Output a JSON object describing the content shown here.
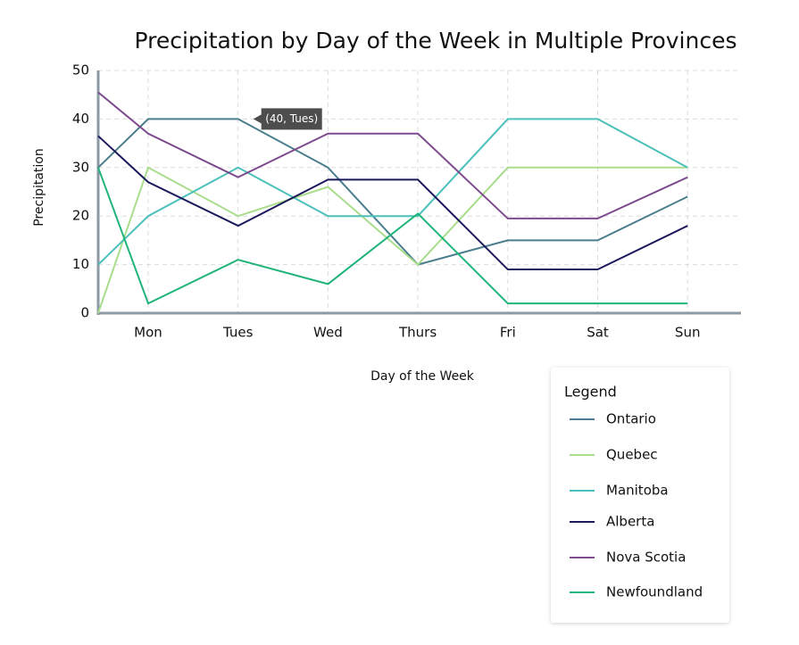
{
  "chart_data": {
    "type": "line",
    "title": "Precipitation by Day of the Week in Multiple Provinces",
    "x_label": "Day of the Week",
    "y_label": "Precipitation",
    "categories": [
      null,
      "Mon",
      "Tues",
      "Wed",
      "Thurs",
      "Fri",
      "Sat",
      "Sun"
    ],
    "series": [
      {
        "name": "Ontario",
        "color": "#4a7e8e",
        "values": [
          30,
          40,
          40,
          30,
          10,
          15,
          15,
          24
        ]
      },
      {
        "name": "Quebec",
        "color": "#a9dd8c",
        "values": [
          0,
          30,
          20,
          26,
          10,
          30,
          30,
          30
        ]
      },
      {
        "name": "Manitoba",
        "color": "#4cc0bb",
        "values": [
          10,
          20,
          30,
          20,
          20,
          40,
          40,
          30
        ]
      },
      {
        "name": "Alberta",
        "color": "#1c1a5c",
        "values": [
          36.5,
          27,
          18,
          27.5,
          27.5,
          9,
          9,
          18
        ]
      },
      {
        "name": "Nova Scotia",
        "color": "#7d4b8e",
        "values": [
          45.5,
          37,
          28,
          37,
          37,
          19.5,
          19.5,
          28
        ]
      },
      {
        "name": "Newfoundland",
        "color": "#21b47a",
        "values": [
          30,
          2,
          11,
          6,
          20.5,
          2,
          2,
          2
        ]
      }
    ],
    "ylim": [
      0,
      50
    ],
    "yticks": [
      0,
      10,
      20,
      30,
      40,
      50
    ],
    "grid": true,
    "legend_title": "Legend",
    "legend_position": "lower right",
    "annotation": "(40, Tues)"
  }
}
